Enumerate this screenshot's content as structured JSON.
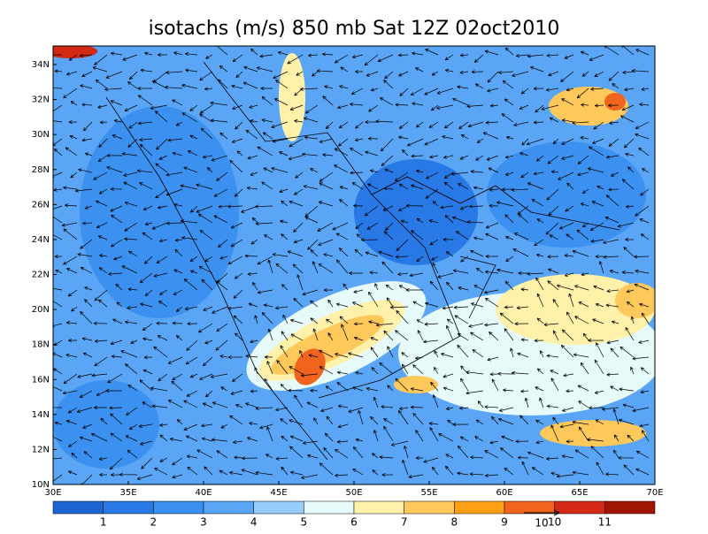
{
  "title": "isotachs (m/s) 850 mb Sat 12Z 02oct2010",
  "lon_ticks": [
    "30E",
    "35E",
    "40E",
    "45E",
    "50E",
    "55E",
    "60E",
    "65E",
    "70E"
  ],
  "lat_ticks": [
    "10N",
    "12N",
    "14N",
    "16N",
    "18N",
    "20N",
    "22N",
    "24N",
    "26N",
    "28N",
    "30N",
    "32N",
    "34N"
  ],
  "colorbar": {
    "labels": [
      1,
      2,
      3,
      4,
      5,
      6,
      7,
      8,
      9,
      10,
      11
    ],
    "colors": [
      "#1e64d2",
      "#2878e6",
      "#3c91f0",
      "#5aa5f5",
      "#96cdfa",
      "#e6fafa",
      "#fff0aa",
      "#ffc85a",
      "#ffa014",
      "#f0641e",
      "#d22814",
      "#a01400"
    ]
  },
  "reference_vector": "10"
}
